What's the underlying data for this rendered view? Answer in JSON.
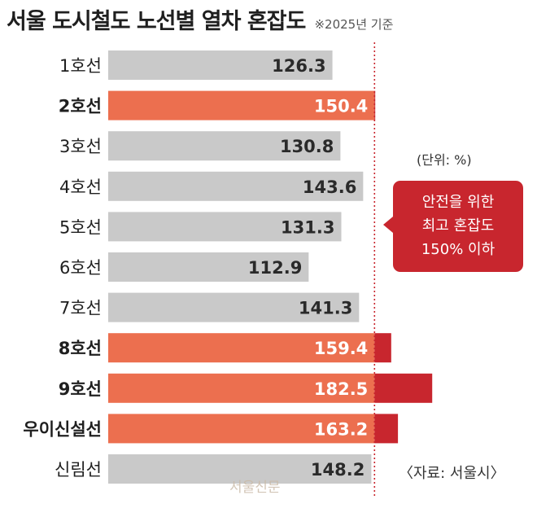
{
  "header": {
    "title": "서울 도시철도 노선별 열차 혼잡도",
    "note": "※2025년 기준"
  },
  "unit_label": "(단위: %)",
  "callout": {
    "lines": [
      "안전을 위한",
      "최고 혼잡도",
      "150% 이하"
    ]
  },
  "source": "〈자료: 서울시〉",
  "watermark": "서울신문",
  "colors": {
    "gray": "#c9c9c9",
    "over_orange": "#ec6f4f",
    "over_red": "#c8262e",
    "label_dark": "#1f1f1f",
    "value_light": "#ffffff"
  },
  "chart_data": {
    "type": "bar",
    "orientation": "horizontal",
    "categories": [
      "1호선",
      "2호선",
      "3호선",
      "4호선",
      "5호선",
      "6호선",
      "7호선",
      "8호선",
      "9호선",
      "우이신설선",
      "신림선"
    ],
    "values": [
      126.3,
      150.4,
      130.8,
      143.6,
      131.3,
      112.9,
      141.3,
      159.4,
      182.5,
      163.2,
      148.2
    ],
    "value_labels": [
      "126.3",
      "150.4",
      "130.8",
      "143.6",
      "131.3",
      "112.9",
      "141.3",
      "159.4",
      "182.5",
      "163.2",
      "148.2"
    ],
    "reference_line": 150,
    "highlighted": [
      false,
      true,
      false,
      false,
      false,
      false,
      false,
      true,
      true,
      true,
      false
    ]
  }
}
